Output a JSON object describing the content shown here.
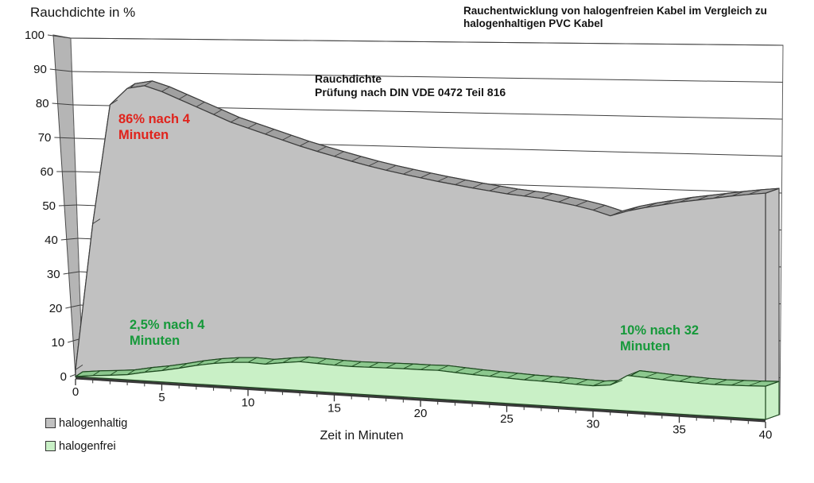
{
  "header": {
    "y_axis_title": "Rauchdichte in %",
    "title_lines": [
      "Rauchentwicklung von halogenfreien Kabel im Vergleich zu",
      "halogenhaltigen PVC Kabel"
    ]
  },
  "note": {
    "lines": [
      "Rauchdichte",
      "Prüfung nach DIN VDE 0472 Teil 816"
    ]
  },
  "chart_data": {
    "type": "area",
    "projection": "3d-perspective",
    "title": "Rauchentwicklung von halogenfreien Kabel im Vergleich zu halogenhaltigen PVC Kabel",
    "subtitle": "Rauchdichte — Prüfung nach DIN VDE 0472 Teil 816",
    "x_label": "Zeit in Minuten",
    "y_label": "Rauchdichte in %",
    "xlim": [
      0,
      40
    ],
    "ylim": [
      0,
      100
    ],
    "x_ticks": [
      0,
      5,
      10,
      15,
      20,
      25,
      30,
      35,
      40
    ],
    "y_ticks": [
      0,
      10,
      20,
      30,
      40,
      50,
      60,
      70,
      80,
      90,
      100
    ],
    "grid": true,
    "legend_position": "bottom-left",
    "x": [
      0,
      1,
      2,
      3,
      4,
      5,
      6,
      7,
      8,
      9,
      10,
      11,
      12,
      13,
      14,
      15,
      16,
      17,
      18,
      19,
      20,
      21,
      22,
      23,
      24,
      25,
      26,
      27,
      28,
      29,
      30,
      31,
      32,
      33,
      34,
      35,
      36,
      37,
      38,
      39,
      40
    ],
    "series": [
      {
        "name": "halogenhaltig",
        "fill": "#c1c1c1",
        "ribbon": "#a0a0a0",
        "stroke": "#3c3c3c",
        "values": [
          2,
          45,
          80,
          85,
          86,
          84.5,
          82.5,
          80.5,
          78.5,
          76.5,
          75,
          73.5,
          72,
          70.5,
          69.2,
          68,
          66.8,
          65.7,
          64.7,
          63.8,
          63,
          62.2,
          61.5,
          60.8,
          60.2,
          59.6,
          59.2,
          58.8,
          58,
          57.2,
          56.2,
          54.8,
          56.4,
          57.6,
          58.6,
          59.6,
          60.4,
          61.2,
          62,
          62.7,
          63.3
        ]
      },
      {
        "name": "halogenfrei",
        "fill": "#c9f0c6",
        "ribbon": "#8cc88e",
        "stroke": "#1e4a20",
        "values": [
          0,
          0.6,
          1,
          1.5,
          2.5,
          3.3,
          4.3,
          5.4,
          6.3,
          6.9,
          7.2,
          7,
          7.7,
          8.3,
          8.1,
          7.9,
          7.8,
          7.9,
          8,
          8.1,
          8.1,
          8.2,
          7.9,
          7.6,
          7.4,
          7.2,
          7,
          6.9,
          6.8,
          6.6,
          6.5,
          7,
          10,
          9.7,
          9.4,
          9.2,
          9,
          8.9,
          9,
          9.1,
          9.3
        ]
      }
    ],
    "annotations": [
      {
        "lines": [
          "86% nach 4",
          "Minuten"
        ],
        "text": "86% nach 4 Minuten",
        "series": "halogenhaltig",
        "x": 4,
        "y": 86,
        "color": "#e0231c"
      },
      {
        "lines": [
          "2,5% nach 4",
          "Minuten"
        ],
        "text": "2,5% nach 4 Minuten",
        "series": "halogenfrei",
        "x": 4,
        "y": 2.5,
        "color": "#16993a"
      },
      {
        "lines": [
          "10% nach 32",
          "Minuten"
        ],
        "text": "10% nach 32 Minuten",
        "series": "halogenfrei",
        "x": 32,
        "y": 10,
        "color": "#16993a"
      }
    ],
    "wall_color": "#b5b5b5",
    "grid_color": "#3f3f3f"
  }
}
